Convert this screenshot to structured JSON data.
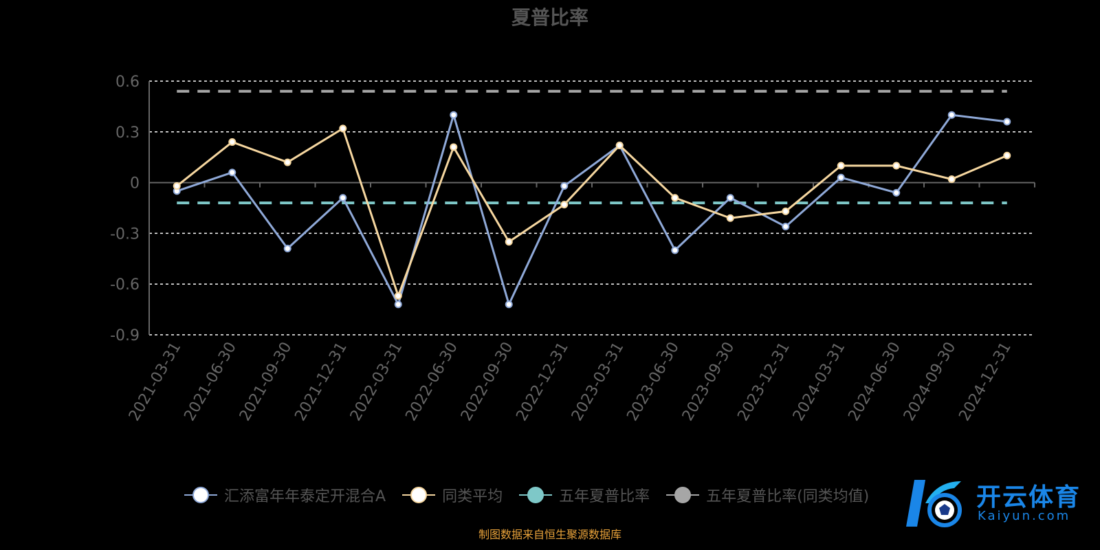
{
  "title": "夏普比率",
  "source_note": "制图数据来自恒生聚源数据库",
  "watermark": {
    "main": "开云体育",
    "sub": "Kaiyun.com"
  },
  "colors": {
    "fund": "#8fa9d8",
    "peer_avg": "#f6d7a0",
    "five_year": "#7ec8c8",
    "five_year_peer": "#a6a6a6",
    "grid": "#ffffff",
    "axis": "#666666",
    "brand": "#1a86e8"
  },
  "legend": [
    {
      "label": "汇添富年年泰定开混合A",
      "color": "#8fa9d8"
    },
    {
      "label": "同类平均",
      "color": "#f6d7a0"
    },
    {
      "label": "五年夏普比率",
      "color": "#7ec8c8"
    },
    {
      "label": "五年夏普比率(同类均值)",
      "color": "#a6a6a6"
    }
  ],
  "chart_data": {
    "type": "line",
    "title": "夏普比率",
    "categories": [
      "2021-03-31",
      "2021-06-30",
      "2021-09-30",
      "2021-12-31",
      "2022-03-31",
      "2022-06-30",
      "2022-09-30",
      "2022-12-31",
      "2023-03-31",
      "2023-06-30",
      "2023-09-30",
      "2023-12-31",
      "2024-03-31",
      "2024-06-30",
      "2024-09-30",
      "2024-12-31"
    ],
    "ylim": [
      -0.9,
      0.6
    ],
    "yticks": [
      "0.6",
      "0.3",
      "0",
      "-0.3",
      "-0.6",
      "-0.9"
    ],
    "ytick_values": [
      0.6,
      0.3,
      0,
      -0.3,
      -0.6,
      -0.9
    ],
    "grid": true,
    "legend_position": "bottom",
    "series": [
      {
        "name": "汇添富年年泰定开混合A",
        "values": [
          -0.05,
          0.06,
          -0.39,
          -0.09,
          -0.72,
          0.4,
          -0.72,
          -0.02,
          0.22,
          -0.4,
          -0.09,
          -0.26,
          0.03,
          -0.06,
          0.4,
          0.36
        ]
      },
      {
        "name": "同类平均",
        "values": [
          -0.02,
          0.24,
          0.12,
          0.32,
          -0.67,
          0.21,
          -0.35,
          -0.13,
          0.22,
          -0.09,
          -0.21,
          -0.17,
          0.1,
          0.1,
          0.02,
          0.16
        ]
      },
      {
        "name": "五年夏普比率",
        "values": [
          -0.12,
          -0.12,
          -0.12,
          -0.12,
          -0.12,
          -0.12,
          -0.12,
          -0.12,
          -0.12,
          -0.12,
          -0.12,
          -0.12,
          -0.12,
          -0.12,
          -0.12,
          -0.12
        ]
      },
      {
        "name": "五年夏普比率(同类均值)",
        "values": [
          0.54,
          0.54,
          0.54,
          0.54,
          0.54,
          0.54,
          0.54,
          0.54,
          0.54,
          0.54,
          0.54,
          0.54,
          0.54,
          0.54,
          0.54,
          0.54
        ]
      }
    ]
  }
}
